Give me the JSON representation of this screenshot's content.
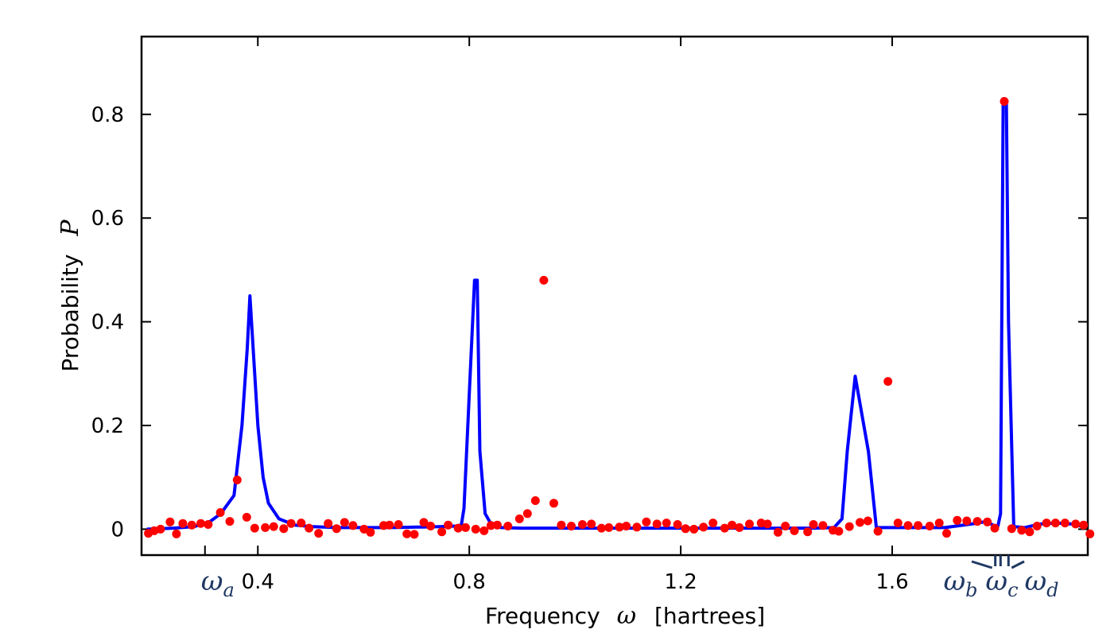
{
  "chart_data": {
    "type": "line",
    "xlabel": "Frequency",
    "xlabel_var": "ω",
    "xlabel_unit": "[hartrees]",
    "ylabel": "Probability",
    "ylabel_var": "P",
    "xlim": [
      0.18,
      1.97
    ],
    "ylim": [
      -0.05,
      0.95
    ],
    "xticks": [
      0.4,
      0.8,
      1.2,
      1.6
    ],
    "xtick_labels": [
      "0.4",
      "0.8",
      "1.2",
      "1.6"
    ],
    "yticks": [
      0,
      0.2,
      0.4,
      0.6,
      0.8
    ],
    "ytick_labels": [
      "0",
      "0.2",
      "0.4",
      "0.6",
      "0.8"
    ],
    "line_color": "#0000ff",
    "point_color": "#ff0000",
    "label_color": "#1f3864",
    "grid": false,
    "omega_markers": [
      {
        "label": "ω",
        "sub": "a",
        "x": 0.3
      },
      {
        "label": "ω",
        "sub": "b",
        "x": 1.795
      },
      {
        "label": "ω",
        "sub": "c",
        "x": 1.805
      },
      {
        "label": "ω",
        "sub": "d",
        "x": 1.82
      }
    ],
    "series": [
      {
        "kind": "line",
        "x": [
          0.19,
          0.24,
          0.28,
          0.31,
          0.33,
          0.355,
          0.37,
          0.38,
          0.385,
          0.4,
          0.41,
          0.42,
          0.44,
          0.47,
          0.5,
          0.55,
          0.6,
          0.65,
          0.7,
          0.71,
          0.75,
          0.775,
          0.785,
          0.79,
          0.81,
          0.815,
          0.82,
          0.83,
          0.84,
          0.86,
          0.9,
          0.95,
          1.0,
          1.05,
          1.1,
          1.2,
          1.3,
          1.4,
          1.45,
          1.49,
          1.505,
          1.515,
          1.53,
          1.555,
          1.57,
          1.58,
          1.6,
          1.7,
          1.75,
          1.78,
          1.79,
          1.8,
          1.805,
          1.81,
          1.816,
          1.82,
          1.83,
          1.85,
          1.88,
          1.91,
          1.94,
          1.96
        ],
        "y": [
          0.0,
          0.002,
          0.005,
          0.015,
          0.03,
          0.065,
          0.2,
          0.35,
          0.45,
          0.2,
          0.1,
          0.05,
          0.02,
          0.008,
          0.005,
          0.003,
          0.003,
          0.003,
          0.004,
          0.004,
          0.005,
          0.006,
          0.008,
          0.04,
          0.48,
          0.48,
          0.15,
          0.03,
          0.012,
          0.003,
          0.002,
          0.002,
          0.002,
          0.002,
          0.002,
          0.002,
          0.002,
          0.002,
          0.002,
          0.003,
          0.02,
          0.15,
          0.295,
          0.15,
          0.003,
          0.003,
          0.003,
          0.003,
          0.01,
          0.015,
          0.008,
          0.006,
          0.03,
          0.83,
          0.825,
          0.4,
          0.005,
          0.003,
          0.01,
          0.012,
          0.01,
          0.005
        ]
      },
      {
        "kind": "scatter",
        "x": [
          0.193,
          0.204,
          0.216,
          0.234,
          0.246,
          0.258,
          0.275,
          0.292,
          0.306,
          0.329,
          0.347,
          0.361,
          0.379,
          0.394,
          0.414,
          0.43,
          0.449,
          0.463,
          0.482,
          0.497,
          0.515,
          0.533,
          0.549,
          0.564,
          0.58,
          0.601,
          0.613,
          0.638,
          0.649,
          0.666,
          0.682,
          0.696,
          0.714,
          0.727,
          0.748,
          0.76,
          0.779,
          0.793,
          0.812,
          0.828,
          0.841,
          0.853,
          0.873,
          0.895,
          0.91,
          0.925,
          0.941,
          0.96,
          0.974,
          0.993,
          1.014,
          1.031,
          1.05,
          1.064,
          1.084,
          1.097,
          1.117,
          1.135,
          1.155,
          1.173,
          1.194,
          1.209,
          1.225,
          1.243,
          1.261,
          1.283,
          1.297,
          1.311,
          1.33,
          1.352,
          1.364,
          1.384,
          1.398,
          1.415,
          1.44,
          1.451,
          1.469,
          1.488,
          1.499,
          1.519,
          1.539,
          1.554,
          1.573,
          1.592,
          1.611,
          1.63,
          1.649,
          1.671,
          1.689,
          1.703,
          1.723,
          1.741,
          1.761,
          1.78,
          1.794,
          1.812,
          1.826,
          1.845,
          1.86,
          1.874,
          1.892,
          1.909,
          1.927,
          1.947,
          1.962,
          1.974
        ],
        "y": [
          -0.008,
          -0.003,
          0.0,
          0.014,
          -0.009,
          0.011,
          0.008,
          0.011,
          0.009,
          0.032,
          0.015,
          0.095,
          0.023,
          0.002,
          0.003,
          0.005,
          0.001,
          0.011,
          0.012,
          0.002,
          -0.008,
          0.011,
          0.001,
          0.013,
          0.007,
          0.0,
          -0.006,
          0.007,
          0.008,
          0.009,
          -0.009,
          -0.01,
          0.013,
          0.006,
          -0.005,
          0.008,
          0.002,
          0.003,
          0.0,
          -0.003,
          0.007,
          0.008,
          0.006,
          0.02,
          0.03,
          0.055,
          0.48,
          0.05,
          0.008,
          0.006,
          0.009,
          0.01,
          0.002,
          0.003,
          0.004,
          0.006,
          0.004,
          0.014,
          0.01,
          0.012,
          0.009,
          0.001,
          0.0,
          0.004,
          0.012,
          0.002,
          0.008,
          0.003,
          0.01,
          0.012,
          0.01,
          -0.006,
          0.006,
          -0.003,
          -0.005,
          0.009,
          0.007,
          -0.002,
          -0.004,
          0.005,
          0.013,
          0.016,
          -0.004,
          0.285,
          0.012,
          0.007,
          0.007,
          0.006,
          0.012,
          -0.008,
          0.017,
          0.016,
          0.015,
          0.014,
          0.002,
          0.825,
          0.001,
          -0.002,
          -0.005,
          0.006,
          0.012,
          0.012,
          0.012,
          0.01,
          0.008,
          -0.009
        ]
      }
    ]
  }
}
